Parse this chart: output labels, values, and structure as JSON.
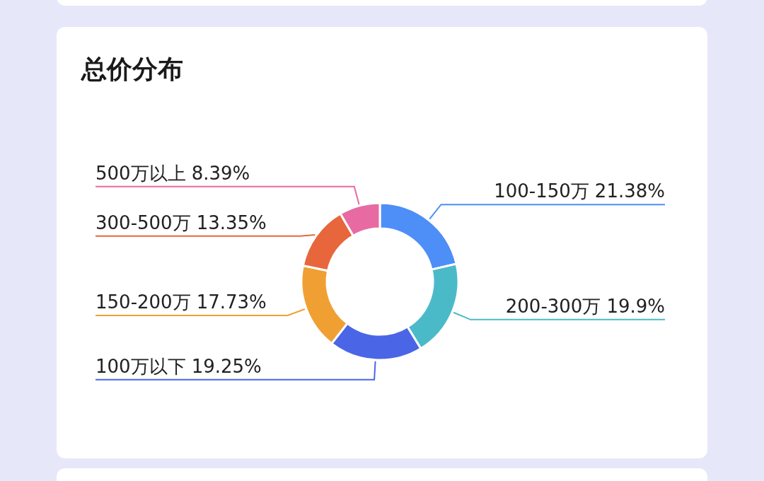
{
  "chart_data": {
    "type": "donut",
    "title": "总价分布",
    "categories": [
      "100-150万",
      "200-300万",
      "100万以下",
      "150-200万",
      "300-500万",
      "500万以上"
    ],
    "values": [
      21.38,
      19.9,
      19.25,
      17.73,
      13.35,
      8.39
    ],
    "value_labels": [
      "21.38%",
      "19.9%",
      "19.25%",
      "17.73%",
      "13.35%",
      "8.39%"
    ],
    "colors": [
      "#4e8ef7",
      "#4bbac8",
      "#4a66e6",
      "#f0a033",
      "#e8663c",
      "#e86aa2"
    ]
  }
}
